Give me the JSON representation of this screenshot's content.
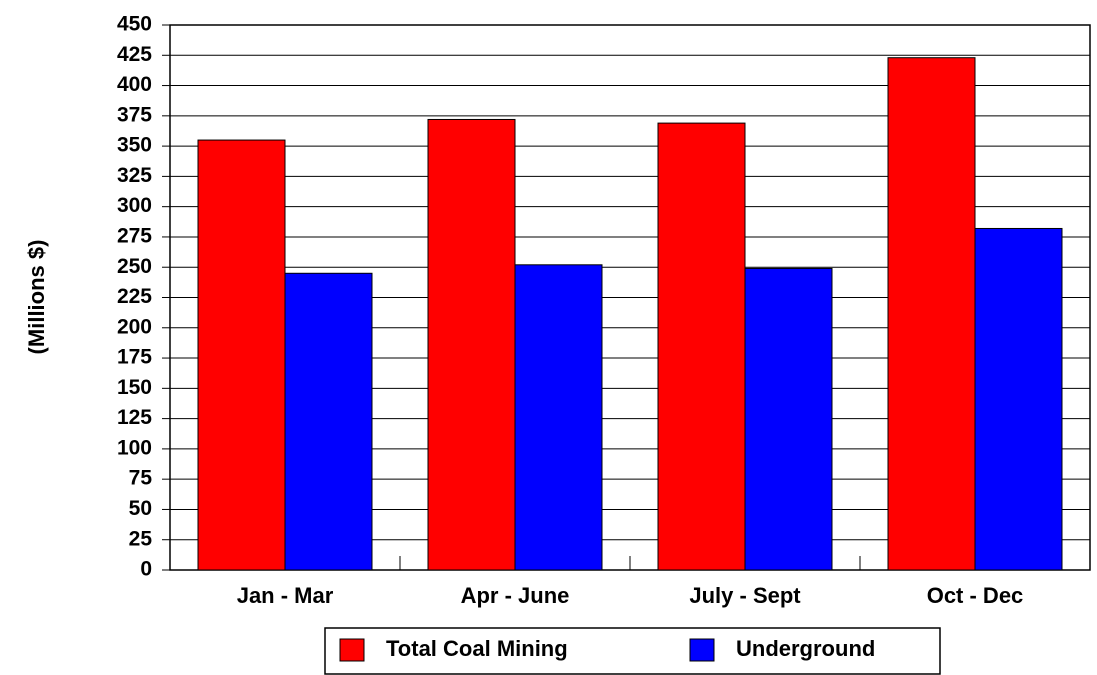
{
  "chart_data": {
    "type": "bar",
    "y_label": "(Millions $)",
    "categories": [
      "Jan - Mar",
      "Apr - June",
      "July - Sept",
      "Oct - Dec"
    ],
    "series": [
      {
        "name": "Total Coal Mining",
        "color": "#ff0000",
        "values": [
          355,
          372,
          369,
          423
        ]
      },
      {
        "name": "Underground",
        "color": "#0000ff",
        "values": [
          245,
          252,
          249,
          282
        ]
      }
    ],
    "ylim": [
      0,
      450
    ],
    "yticks": [
      0,
      25,
      50,
      75,
      100,
      125,
      150,
      175,
      200,
      225,
      250,
      275,
      300,
      325,
      350,
      375,
      400,
      425,
      450
    ],
    "grid": true
  }
}
